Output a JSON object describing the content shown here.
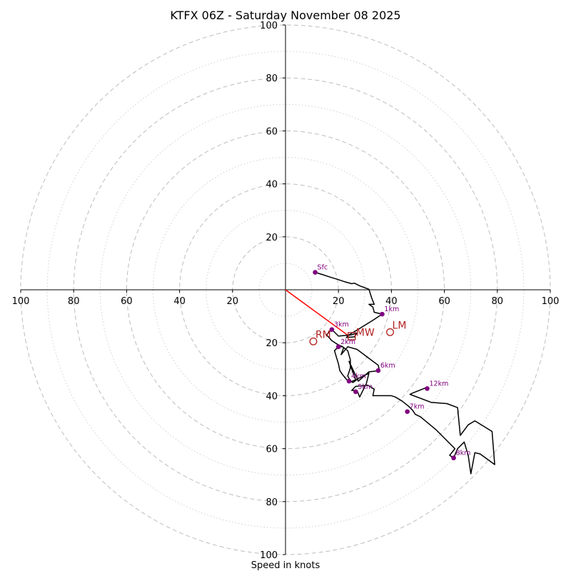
{
  "chart_data": {
    "type": "hodograph",
    "title": "KTFX 06Z - Saturday November 08 2025",
    "xlabel": "Speed in knots",
    "ring_max": 100,
    "major_ring_step": 20,
    "minor_ring_step": 10,
    "x_tick_labels": [
      "100",
      "80",
      "60",
      "40",
      "20",
      "20",
      "40",
      "60",
      "80",
      "100"
    ],
    "x_tick_values": [
      -100,
      -80,
      -60,
      -40,
      -20,
      20,
      40,
      60,
      80,
      100
    ],
    "y_tick_labels": [
      "100",
      "80",
      "60",
      "40",
      "20",
      "20",
      "40",
      "60",
      "80",
      "100"
    ],
    "y_tick_values": [
      100,
      80,
      60,
      40,
      20,
      -20,
      -40,
      -60,
      -80,
      -100
    ],
    "wind_trace": [
      [
        11.2,
        6.6
      ],
      [
        13.8,
        5.8
      ],
      [
        16.5,
        4.9
      ],
      [
        19.5,
        4.0
      ],
      [
        22.5,
        3.0
      ],
      [
        25.0,
        2.3
      ],
      [
        26.0,
        2.5
      ],
      [
        28.0,
        1.5
      ],
      [
        31.5,
        0.2
      ],
      [
        32.5,
        -3.0
      ],
      [
        33.5,
        -5.5
      ],
      [
        31.5,
        -5.5
      ],
      [
        33.0,
        -6.5
      ],
      [
        33.5,
        -8.5
      ],
      [
        36.5,
        -9.2
      ],
      [
        33.0,
        -11.5
      ],
      [
        28.0,
        -14.6
      ],
      [
        24.0,
        -17.0
      ],
      [
        23.0,
        -18.0
      ],
      [
        26.0,
        -17.8
      ],
      [
        27.0,
        -16.3
      ],
      [
        25.0,
        -17.0
      ],
      [
        20.0,
        -17.5
      ],
      [
        17.5,
        -15.0
      ],
      [
        15.5,
        -17.0
      ],
      [
        17.5,
        -19.2
      ],
      [
        19.5,
        -20.5
      ],
      [
        21.5,
        -21.5
      ],
      [
        22.0,
        -21.8
      ],
      [
        21.0,
        -24.5
      ],
      [
        23.5,
        -21.5
      ],
      [
        27.0,
        -22.5
      ],
      [
        31.0,
        -25.5
      ],
      [
        35.0,
        -28.5
      ],
      [
        35.5,
        -30.5
      ],
      [
        31.5,
        -31.0
      ],
      [
        27.5,
        -34.5
      ],
      [
        24.0,
        -27.0
      ],
      [
        25.0,
        -30.0
      ],
      [
        26.5,
        -34.0
      ],
      [
        24.0,
        -35.0
      ],
      [
        21.5,
        -32.0
      ],
      [
        20.5,
        -30.5
      ],
      [
        20.0,
        -28.0
      ],
      [
        18.5,
        -23.0
      ],
      [
        20.0,
        -21.5
      ],
      [
        21.5,
        -21.5
      ],
      [
        23.5,
        -23.0
      ],
      [
        24.5,
        -26.5
      ],
      [
        24.5,
        -29.5
      ],
      [
        23.5,
        -32.5
      ],
      [
        24.5,
        -34.5
      ],
      [
        25.5,
        -35.0
      ],
      [
        27.5,
        -33.5
      ],
      [
        31.5,
        -31.5
      ],
      [
        30.5,
        -35.5
      ],
      [
        29.0,
        -38.5
      ],
      [
        28.0,
        -40.5
      ],
      [
        27.0,
        -38.0
      ],
      [
        25.0,
        -38.0
      ],
      [
        26.5,
        -36.5
      ],
      [
        31.0,
        -36.0
      ],
      [
        33.5,
        -37.5
      ],
      [
        33.0,
        -40.0
      ],
      [
        40.0,
        -40.0
      ],
      [
        41.5,
        -40.5
      ],
      [
        44.0,
        -42.0
      ],
      [
        46.5,
        -44.0
      ],
      [
        48.0,
        -45.5
      ],
      [
        49.0,
        -47.0
      ],
      [
        51.0,
        -48.0
      ],
      [
        57.0,
        -53.0
      ],
      [
        61.0,
        -57.0
      ],
      [
        64.0,
        -60.0
      ],
      [
        62.0,
        -62.5
      ],
      [
        63.5,
        -63.5
      ],
      [
        65.0,
        -60.0
      ],
      [
        67.5,
        -57.5
      ],
      [
        69.0,
        -62.5
      ],
      [
        70.0,
        -69.5
      ],
      [
        71.5,
        -61.5
      ],
      [
        73.5,
        -62.0
      ],
      [
        79.0,
        -66.0
      ],
      [
        78.0,
        -53.5
      ],
      [
        71.5,
        -49.5
      ],
      [
        69.0,
        -51.0
      ],
      [
        66.0,
        -55.0
      ],
      [
        65.0,
        -44.5
      ],
      [
        61.0,
        -43.0
      ],
      [
        55.0,
        -42.5
      ],
      [
        47.0,
        -39.5
      ],
      [
        48.0,
        -39.0
      ],
      [
        53.0,
        -37.0
      ],
      [
        53.5,
        -37.3
      ]
    ],
    "height_markers": [
      {
        "label": "Sfc",
        "u": 11.2,
        "v": 6.6
      },
      {
        "label": "1km",
        "u": 36.5,
        "v": -9.2
      },
      {
        "label": "2km",
        "u": 20.0,
        "v": -21.5
      },
      {
        "label": "3km",
        "u": 17.5,
        "v": -15.0
      },
      {
        "label": "4km",
        "u": 24.0,
        "v": -34.5
      },
      {
        "label": "5km",
        "u": 26.5,
        "v": -38.5
      },
      {
        "label": "6km",
        "u": 35.0,
        "v": -30.5
      },
      {
        "label": "7km",
        "u": 46.0,
        "v": -46.0
      },
      {
        "label": "8km",
        "u": 63.5,
        "v": -63.5
      },
      {
        "label": "12km",
        "u": 53.5,
        "v": -37.3
      }
    ],
    "storm_motion": [
      {
        "label": "RM",
        "u": 10.5,
        "v": -19.5,
        "marker": "circle"
      },
      {
        "label": "LM",
        "u": 39.5,
        "v": -16.0,
        "marker": "circle"
      },
      {
        "label": "MW",
        "u": 25.0,
        "v": -17.5,
        "marker": "square"
      }
    ],
    "shear_vector": {
      "from": [
        0,
        0
      ],
      "to": [
        24.0,
        -17.5
      ]
    }
  },
  "colors": {
    "trace": "#000000",
    "height_marker": "#800080",
    "storm_motion": "#b22222",
    "shear_vector": "#ff0000",
    "grid": "#bdbdbd"
  }
}
